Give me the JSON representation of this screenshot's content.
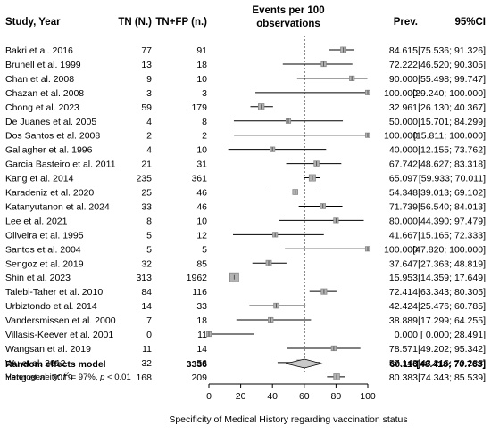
{
  "chart_data": {
    "type": "forest",
    "headers": {
      "study": "Study, Year",
      "tn": "TN (N.)",
      "tnfp": "TN+FP (n.)",
      "events_line1": "Events per 100",
      "events_line2": "observations",
      "prev": "Prev.",
      "ci": "95%CI"
    },
    "studies": [
      {
        "name": "Bakri et al. 2016",
        "tn": "77",
        "tnfp": "91",
        "prev": 84.615,
        "lo": 75.536,
        "hi": 91.326,
        "prev_text": "84.615",
        "ci_text": "[75.536; 91.326]"
      },
      {
        "name": "Brunell et al. 1999",
        "tn": "13",
        "tnfp": "18",
        "prev": 72.222,
        "lo": 46.52,
        "hi": 90.305,
        "prev_text": "72.222",
        "ci_text": "[46.520; 90.305]"
      },
      {
        "name": "Chan et al. 2008",
        "tn": "9",
        "tnfp": "10",
        "prev": 90.0,
        "lo": 55.498,
        "hi": 99.747,
        "prev_text": "90.000",
        "ci_text": "[55.498; 99.747]"
      },
      {
        "name": "Chazan et al. 2008",
        "tn": "3",
        "tnfp": "3",
        "prev": 100.0,
        "lo": 29.24,
        "hi": 100.0,
        "prev_text": "100.000",
        "ci_text": "[29.240; 100.000]"
      },
      {
        "name": "Chong et al. 2023",
        "tn": "59",
        "tnfp": "179",
        "prev": 32.961,
        "lo": 26.13,
        "hi": 40.367,
        "prev_text": "32.961",
        "ci_text": "[26.130; 40.367]"
      },
      {
        "name": "De Juanes et al. 2005",
        "tn": "4",
        "tnfp": "8",
        "prev": 50.0,
        "lo": 15.701,
        "hi": 84.299,
        "prev_text": "50.000",
        "ci_text": "[15.701; 84.299]"
      },
      {
        "name": "Dos Santos et al. 2008",
        "tn": "2",
        "tnfp": "2",
        "prev": 100.0,
        "lo": 15.811,
        "hi": 100.0,
        "prev_text": "100.000",
        "ci_text": "[15.811; 100.000]"
      },
      {
        "name": "Gallagher et al. 1996",
        "tn": "4",
        "tnfp": "10",
        "prev": 40.0,
        "lo": 12.155,
        "hi": 73.762,
        "prev_text": "40.000",
        "ci_text": "[12.155; 73.762]"
      },
      {
        "name": "Garcia Basteiro et al. 2011",
        "tn": "21",
        "tnfp": "31",
        "prev": 67.742,
        "lo": 48.627,
        "hi": 83.318,
        "prev_text": "67.742",
        "ci_text": "[48.627; 83.318]"
      },
      {
        "name": "Kang et al. 2014",
        "tn": "235",
        "tnfp": "361",
        "prev": 65.097,
        "lo": 59.933,
        "hi": 70.011,
        "prev_text": "65.097",
        "ci_text": "[59.933; 70.011]"
      },
      {
        "name": "Karadeniz et al. 2020",
        "tn": "25",
        "tnfp": "46",
        "prev": 54.348,
        "lo": 39.013,
        "hi": 69.102,
        "prev_text": "54.348",
        "ci_text": "[39.013; 69.102]"
      },
      {
        "name": "Katanyutanon et al. 2024",
        "tn": "33",
        "tnfp": "46",
        "prev": 71.739,
        "lo": 56.54,
        "hi": 84.013,
        "prev_text": "71.739",
        "ci_text": "[56.540; 84.013]"
      },
      {
        "name": "Lee et al. 2021",
        "tn": "8",
        "tnfp": "10",
        "prev": 80.0,
        "lo": 44.39,
        "hi": 97.479,
        "prev_text": "80.000",
        "ci_text": "[44.390; 97.479]"
      },
      {
        "name": "Oliveira et al. 1995",
        "tn": "5",
        "tnfp": "12",
        "prev": 41.667,
        "lo": 15.165,
        "hi": 72.333,
        "prev_text": "41.667",
        "ci_text": "[15.165; 72.333]"
      },
      {
        "name": "Santos et al. 2004",
        "tn": "5",
        "tnfp": "5",
        "prev": 100.0,
        "lo": 47.82,
        "hi": 100.0,
        "prev_text": "100.000",
        "ci_text": "[47.820; 100.000]"
      },
      {
        "name": "Sengoz et al. 2019",
        "tn": "32",
        "tnfp": "85",
        "prev": 37.647,
        "lo": 27.363,
        "hi": 48.819,
        "prev_text": "37.647",
        "ci_text": "[27.363; 48.819]"
      },
      {
        "name": "Shin et al. 2023",
        "tn": "313",
        "tnfp": "1962",
        "prev": 15.953,
        "lo": 14.359,
        "hi": 17.649,
        "prev_text": "15.953",
        "ci_text": "[14.359; 17.649]"
      },
      {
        "name": "Talebi-Taher et al. 2010",
        "tn": "84",
        "tnfp": "116",
        "prev": 72.414,
        "lo": 63.343,
        "hi": 80.305,
        "prev_text": "72.414",
        "ci_text": "[63.343; 80.305]"
      },
      {
        "name": "Urbiztondo et al. 2014",
        "tn": "14",
        "tnfp": "33",
        "prev": 42.424,
        "lo": 25.476,
        "hi": 60.785,
        "prev_text": "42.424",
        "ci_text": "[25.476; 60.785]"
      },
      {
        "name": "Vandersmissen et al. 2000",
        "tn": "7",
        "tnfp": "18",
        "prev": 38.889,
        "lo": 17.299,
        "hi": 64.255,
        "prev_text": "38.889",
        "ci_text": "[17.299; 64.255]"
      },
      {
        "name": "Villasis-Keever et al. 2001",
        "tn": "0",
        "tnfp": "11",
        "prev": 0.0,
        "lo": 0.0,
        "hi": 28.491,
        "prev_text": "0.000",
        "ci_text": "[ 0.000; 28.491]"
      },
      {
        "name": "Wangsan et al. 2019",
        "tn": "11",
        "tnfp": "14",
        "prev": 78.571,
        "lo": 49.202,
        "hi": 95.342,
        "prev_text": "78.571",
        "ci_text": "[49.202; 95.342]"
      },
      {
        "name": "Wu et al. 2012",
        "tn": "32",
        "tnfp": "56",
        "prev": 57.143,
        "lo": 43.216,
        "hi": 70.288,
        "prev_text": "57.143",
        "ci_text": "[43.216; 70.288]"
      },
      {
        "name": "Yang et al. 2019",
        "tn": "168",
        "tnfp": "209",
        "prev": 80.383,
        "lo": 74.343,
        "hi": 85.539,
        "prev_text": "80.383",
        "ci_text": "[74.343; 85.539]"
      }
    ],
    "summary": {
      "label": "Random effects model",
      "tnfp": "3336",
      "prev": 60.116,
      "lo": 48.418,
      "hi": 70.763,
      "prev_text": "60.116",
      "ci_text": "[48.418; 70.763]"
    },
    "heterogeneity": {
      "prefix": "Heterogeneity: ",
      "i2_symbol": "I",
      "i2_sup": "2",
      "text": " = 97%, ",
      "p_symbol": "p",
      "p_text": " < 0.01"
    },
    "x_axis": {
      "ticks": [
        0,
        20,
        40,
        60,
        80,
        100
      ],
      "tick_labels": [
        "0",
        "20",
        "40",
        "60",
        "80",
        "100"
      ],
      "xlim": [
        0,
        100
      ],
      "label": "Specificity of Medical History regarding vaccination status"
    },
    "reference_line": 60.116,
    "colors": {
      "square_fill": "#b3b3b3",
      "square_edge": "#888888",
      "diamond_fill": "#c9c9c9",
      "line": "#000000"
    }
  }
}
